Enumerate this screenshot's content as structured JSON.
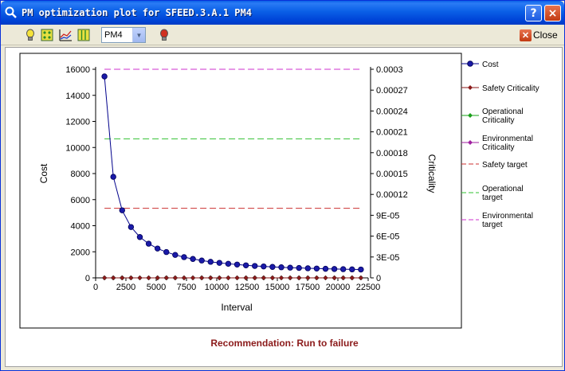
{
  "window": {
    "title": "PM optimization plot for SFEED.3.A.1 PM4",
    "help_label": "?",
    "close_glyph": "×"
  },
  "toolbar": {
    "icons": [
      "bulb-icon",
      "grid-icon",
      "chart-icon",
      "columns-icon",
      "traffic-light-icon"
    ],
    "select_value": "PM4",
    "close_label": "Close"
  },
  "recommendation": "Recommendation: Run to failure",
  "chart_data": {
    "type": "line",
    "xlabel": "Interval",
    "ylabel": "Cost",
    "y2label": "Criticality",
    "xlim": [
      0,
      22500
    ],
    "ylim": [
      0,
      16000
    ],
    "y2lim": [
      0,
      0.0003
    ],
    "x_ticks": [
      "0",
      "2500",
      "5000",
      "7500",
      "10000",
      "12500",
      "15000",
      "17500",
      "20000",
      "22500"
    ],
    "y_ticks": [
      "0",
      "2000",
      "4000",
      "6000",
      "8000",
      "10000",
      "12000",
      "14000",
      "16000"
    ],
    "y2_ticks": [
      "0",
      "3E-05",
      "6E-05",
      "9E-05",
      "0.00012",
      "0.00015",
      "0.00018",
      "0.00021",
      "0.00024",
      "0.00027",
      "0.0003"
    ],
    "legend_position": "right",
    "series": [
      {
        "name": "Cost",
        "axis": "left",
        "color": "#00008b",
        "x": [
          730,
          1460,
          2190,
          2920,
          3650,
          4380,
          5110,
          5840,
          6570,
          7300,
          8030,
          8760,
          9490,
          10220,
          10950,
          11680,
          12410,
          13140,
          13870,
          14600,
          15330,
          16060,
          16790,
          17520,
          18250,
          18980,
          19710,
          20440,
          21170,
          21900
        ],
        "y": [
          15450,
          7750,
          5180,
          3900,
          3130,
          2620,
          2250,
          1980,
          1760,
          1590,
          1450,
          1330,
          1230,
          1150,
          1080,
          1020,
          960,
          915,
          875,
          840,
          810,
          780,
          760,
          735,
          715,
          695,
          680,
          665,
          650,
          640
        ]
      },
      {
        "name": "Safety Criticality",
        "axis": "right",
        "color": "#8b1a1a",
        "x": [
          730,
          1460,
          2190,
          2920,
          3650,
          4380,
          5110,
          5840,
          6570,
          7300,
          8030,
          8760,
          9490,
          10220,
          10950,
          11680,
          12410,
          13140,
          13870,
          14600,
          15330,
          16060,
          16790,
          17520,
          18250,
          18980,
          19710,
          20440,
          21170,
          21900
        ],
        "y": [
          0,
          0,
          0,
          0,
          0,
          0,
          0,
          0,
          0,
          0,
          0,
          0,
          0,
          0,
          0,
          0,
          0,
          0,
          0,
          0,
          0,
          0,
          0,
          0,
          0,
          0,
          0,
          0,
          0,
          0
        ]
      },
      {
        "name": "Operational Criticality",
        "axis": "right",
        "color": "#1aa01a",
        "x": [
          730,
          1460,
          2190,
          2920,
          3650,
          4380,
          5110,
          5840,
          6570,
          7300,
          8030,
          8760,
          9490,
          10220,
          10950,
          11680,
          12410,
          13140,
          13870,
          14600,
          15330,
          16060,
          16790,
          17520,
          18250,
          18980,
          19710,
          20440,
          21170,
          21900
        ],
        "y": [
          0,
          0,
          0,
          0,
          0,
          0,
          0,
          0,
          0,
          0,
          0,
          0,
          0,
          0,
          0,
          0,
          0,
          0,
          0,
          0,
          0,
          0,
          0,
          0,
          0,
          0,
          0,
          0,
          0,
          0
        ]
      },
      {
        "name": "Environmental Criticality",
        "axis": "right",
        "color": "#a020a0",
        "x": [
          730,
          1460,
          2190,
          2920,
          3650,
          4380,
          5110,
          5840,
          6570,
          7300,
          8030,
          8760,
          9490,
          10220,
          10950,
          11680,
          12410,
          13140,
          13870,
          14600,
          15330,
          16060,
          16790,
          17520,
          18250,
          18980,
          19710,
          20440,
          21170,
          21900
        ],
        "y": [
          0,
          0,
          0,
          0,
          0,
          0,
          0,
          0,
          0,
          0,
          0,
          0,
          0,
          0,
          0,
          0,
          0,
          0,
          0,
          0,
          0,
          0,
          0,
          0,
          0,
          0,
          0,
          0,
          0,
          0
        ]
      }
    ],
    "targets": [
      {
        "name": "Safety target",
        "axis": "right",
        "color": "#cc3030",
        "value": 0.0001,
        "x": [
          730,
          21900
        ]
      },
      {
        "name": "Operational target",
        "axis": "right",
        "color": "#30c030",
        "value": 0.0002,
        "x": [
          730,
          21900
        ]
      },
      {
        "name": "Environmental target",
        "axis": "right",
        "color": "#cc30cc",
        "value": 0.0003,
        "x": [
          730,
          21900
        ]
      }
    ],
    "legend": [
      {
        "label": [
          "Cost"
        ],
        "kind": "marker-line",
        "color": "#00008b",
        "marker": "circle"
      },
      {
        "label": [
          "Safety Criticality"
        ],
        "kind": "marker-line",
        "color": "#8b1a1a",
        "marker": "diamond"
      },
      {
        "label": [
          "Operational",
          "Criticality"
        ],
        "kind": "marker-line",
        "color": "#1aa01a",
        "marker": "diamond"
      },
      {
        "label": [
          "Environmental",
          "Criticality"
        ],
        "kind": "marker-line",
        "color": "#a020a0",
        "marker": "diamond"
      },
      {
        "label": [
          "Safety target"
        ],
        "kind": "dash",
        "color": "#cc3030"
      },
      {
        "label": [
          "Operational",
          "target"
        ],
        "kind": "dash",
        "color": "#30c030"
      },
      {
        "label": [
          "Environmental",
          "target"
        ],
        "kind": "dash",
        "color": "#cc30cc"
      }
    ]
  }
}
